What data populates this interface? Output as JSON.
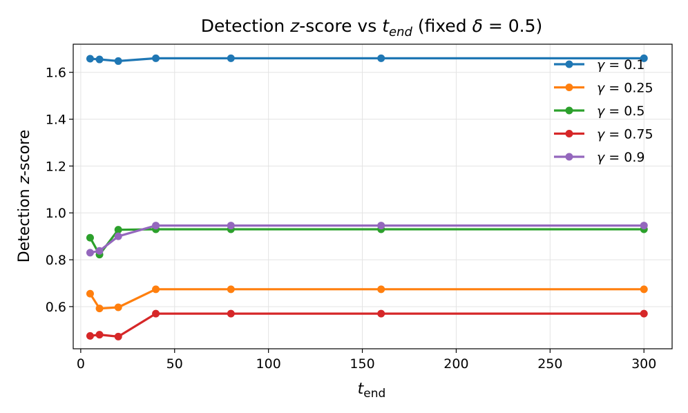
{
  "chart_data": {
    "type": "line",
    "title": "Detection z-score vs t_end (fixed δ = 0.5)",
    "title_parts": {
      "prefix": "Detection ",
      "z": "z",
      "mid": "-score vs ",
      "t": "t",
      "t_sub": "end",
      "paren_open": " (fixed ",
      "delta": "δ",
      "eq": " = 0.5)"
    },
    "xlabel": "t_end",
    "xlabel_parts": {
      "t": "t",
      "sub": "end"
    },
    "ylabel": "Detection z-score",
    "ylabel_parts": {
      "prefix": "Detection ",
      "z": "z",
      "suffix": "-score"
    },
    "xlim": [
      -4,
      315
    ],
    "ylim": [
      0.42,
      1.72
    ],
    "xticks": [
      0,
      50,
      100,
      150,
      200,
      250,
      300
    ],
    "yticks": [
      0.6,
      0.8,
      1.0,
      1.2,
      1.4,
      1.6
    ],
    "ytick_labels": [
      "0.6",
      "0.8",
      "1.0",
      "1.2",
      "1.4",
      "1.6"
    ],
    "grid": true,
    "legend_position": "top-right",
    "x": [
      5,
      10,
      20,
      40,
      80,
      160,
      300
    ],
    "series": [
      {
        "name": "γ = 0.1",
        "gamma": "γ",
        "eq": " = 0.1",
        "color": "#1f77b4",
        "values": [
          1.658,
          1.655,
          1.648,
          1.66,
          1.66,
          1.66,
          1.66
        ]
      },
      {
        "name": "γ = 0.25",
        "gamma": "γ",
        "eq": " = 0.25",
        "color": "#ff7f0e",
        "values": [
          0.655,
          0.592,
          0.597,
          0.674,
          0.674,
          0.674,
          0.674
        ]
      },
      {
        "name": "γ = 0.5",
        "gamma": "γ",
        "eq": " = 0.5",
        "color": "#2ca02c",
        "values": [
          0.894,
          0.822,
          0.928,
          0.93,
          0.93,
          0.93,
          0.93
        ]
      },
      {
        "name": "γ = 0.75",
        "gamma": "γ",
        "eq": " = 0.75",
        "color": "#d62728",
        "values": [
          0.475,
          0.48,
          0.472,
          0.57,
          0.57,
          0.57,
          0.57
        ]
      },
      {
        "name": "γ = 0.9",
        "gamma": "γ",
        "eq": " = 0.9",
        "color": "#9467bd",
        "values": [
          0.83,
          0.838,
          0.9,
          0.946,
          0.946,
          0.946,
          0.946
        ]
      }
    ]
  }
}
